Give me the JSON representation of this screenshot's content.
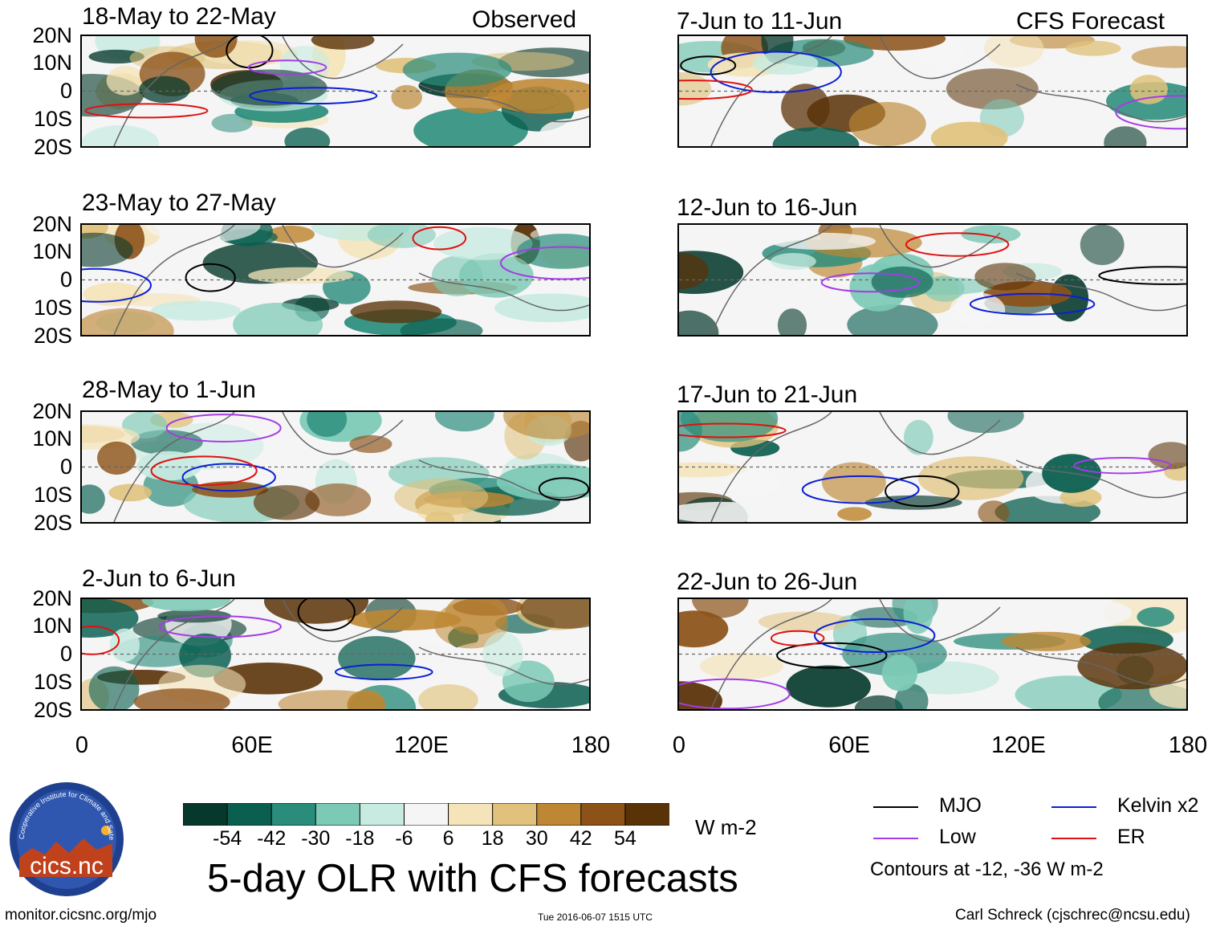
{
  "figure": {
    "title": "5-day OLR with CFS forecasts",
    "observed_label": "Observed",
    "forecast_label": "CFS Forecast",
    "units": "W m-2",
    "contour_note": "Contours at -12, -36 W m-2",
    "site": "monitor.cicsnc.org/mjo",
    "timestamp": "Tue 2016-06-07 1515 UTC",
    "author": "Carl Schreck (cjschrec@ncsu.edu)",
    "logo_text": "cics.nc",
    "logo_ring": "Cooperative Institute for Climate and Satellites"
  },
  "panels": {
    "observed": [
      {
        "period": "18-May to 22-May"
      },
      {
        "period": "23-May to 27-May"
      },
      {
        "period": "28-May to 1-Jun"
      },
      {
        "period": "2-Jun to 6-Jun"
      }
    ],
    "forecast": [
      {
        "period": "7-Jun to 11-Jun"
      },
      {
        "period": "12-Jun to 16-Jun"
      },
      {
        "period": "17-Jun to 21-Jun"
      },
      {
        "period": "22-Jun to 26-Jun"
      }
    ]
  },
  "axes": {
    "lat_ticks": [
      "20N",
      "10N",
      "0",
      "10S",
      "20S"
    ],
    "lon_ticks": [
      "0",
      "60E",
      "120E",
      "180"
    ]
  },
  "colorbar": {
    "ticks": [
      "-54",
      "-42",
      "-30",
      "-18",
      "-6",
      "6",
      "18",
      "30",
      "42",
      "54"
    ],
    "colors": [
      "#06392c",
      "#0a5f50",
      "#2a8d7c",
      "#7cc9b6",
      "#c8ebe1",
      "#f5f5f5",
      "#f5e4b9",
      "#e0c27c",
      "#bd8733",
      "#8c5218",
      "#5a3208"
    ]
  },
  "legend": [
    {
      "label": "MJO",
      "color": "#000000"
    },
    {
      "label": "Kelvin x2",
      "color": "#0b1fd6"
    },
    {
      "label": "Low",
      "color": "#a43ce6"
    },
    {
      "label": "ER",
      "color": "#e01010"
    }
  ]
}
